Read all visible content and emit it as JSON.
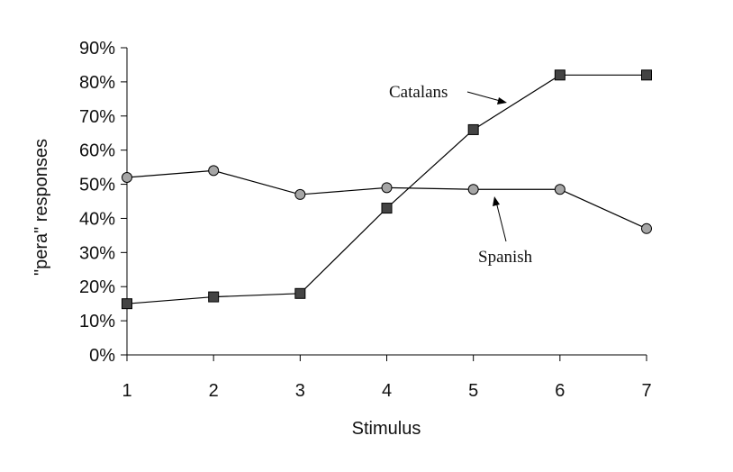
{
  "chart_data": {
    "type": "line",
    "title": "",
    "xlabel": "Stimulus",
    "ylabel": "\"pera\" responses",
    "x": [
      1,
      2,
      3,
      4,
      5,
      6,
      7
    ],
    "x_tick_labels": [
      "1",
      "2",
      "3",
      "4",
      "5",
      "6",
      "7"
    ],
    "y_tick_labels": [
      "0%",
      "10%",
      "20%",
      "30%",
      "40%",
      "50%",
      "60%",
      "70%",
      "80%",
      "90%"
    ],
    "ylim": [
      0,
      90
    ],
    "grid": false,
    "series": [
      {
        "name": "Catalans",
        "marker": "square",
        "color": "#444444",
        "values": [
          15,
          17,
          18,
          43,
          66,
          82,
          82
        ]
      },
      {
        "name": "Spanish",
        "marker": "circle",
        "color": "#a6a6a6",
        "values": [
          52,
          54,
          47,
          49,
          48.5,
          48.5,
          37
        ]
      }
    ],
    "annotations": [
      {
        "text": "Catalans",
        "series": "Catalans"
      },
      {
        "text": "Spanish",
        "series": "Spanish"
      }
    ]
  }
}
